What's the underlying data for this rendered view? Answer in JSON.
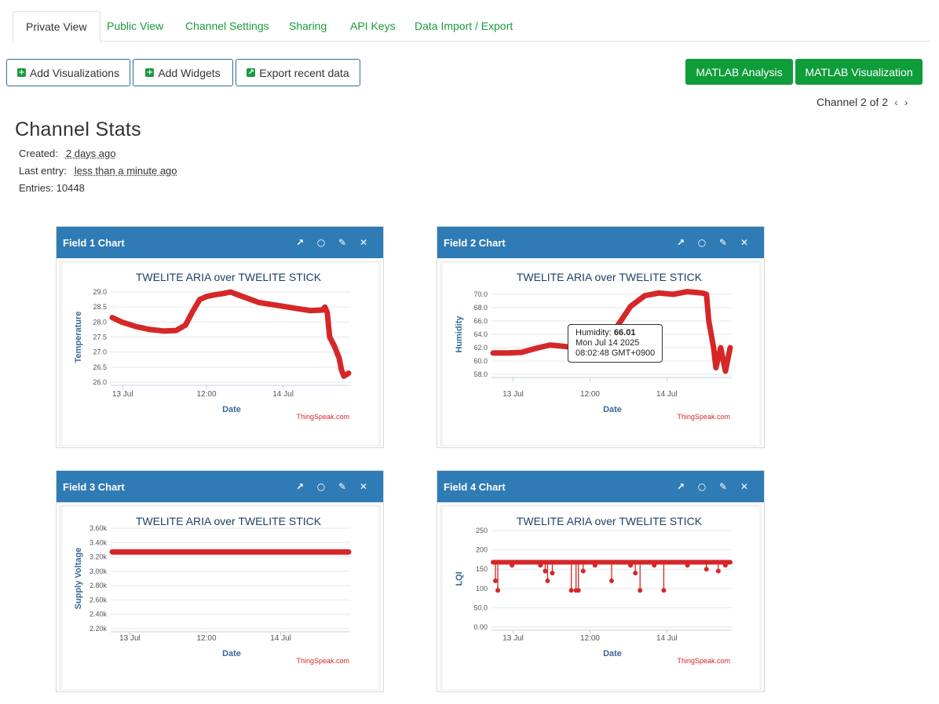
{
  "tabs": [
    {
      "label": "Private View",
      "active": true
    },
    {
      "label": "Public View",
      "active": false
    },
    {
      "label": "Channel Settings",
      "active": false
    },
    {
      "label": "Sharing",
      "active": false
    },
    {
      "label": "API Keys",
      "active": false
    },
    {
      "label": "Data Import / Export",
      "active": false
    }
  ],
  "toolbar": {
    "add_visualizations": "Add Visualizations",
    "add_widgets": "Add Widgets",
    "export_recent": "Export recent data",
    "matlab_analysis": "MATLAB Analysis",
    "matlab_visualization": "MATLAB Visualization"
  },
  "channel_nav": {
    "label": "Channel 2 of 2",
    "prev": "‹",
    "next": "›"
  },
  "stats": {
    "title": "Channel Stats",
    "created_label": "Created:",
    "created_value": "2 days ago",
    "last_entry_label": "Last entry:",
    "last_entry_value": "less than a minute ago",
    "entries_label": "Entries: 10448"
  },
  "colors": {
    "accent": "#2f7bb5",
    "green": "#0f9d3a",
    "series": "#d62728"
  },
  "panels": [
    {
      "title": "Field 1 Chart",
      "chart_data": {
        "type": "line",
        "title": "TWELITE ARIA over TWELITE STICK",
        "xlabel": "Date",
        "ylabel": "Temperature",
        "credit": "ThingSpeak.com",
        "yticks": [
          "29.0",
          "28.5",
          "28.0",
          "27.5",
          "27.0",
          "26.5",
          "26.0"
        ],
        "ylim": [
          26.0,
          29.0
        ],
        "xticks": [
          "13 Jul",
          "12:00",
          "14 Jul"
        ],
        "xtick_t": [
          0.05,
          0.4,
          0.72
        ],
        "series": [
          {
            "t": [
              0.0,
              0.04,
              0.1,
              0.16,
              0.22,
              0.27,
              0.31,
              0.34,
              0.37,
              0.4,
              0.43,
              0.47,
              0.5,
              0.55,
              0.62,
              0.7,
              0.78,
              0.84,
              0.89,
              0.9,
              0.91,
              0.92,
              0.94,
              0.96,
              0.97,
              0.98,
              1.0
            ],
            "values": [
              28.15,
              28.0,
              27.85,
              27.75,
              27.7,
              27.72,
              27.9,
              28.35,
              28.75,
              28.85,
              28.9,
              28.95,
              29.0,
              28.85,
              28.65,
              28.55,
              28.45,
              28.38,
              28.4,
              28.5,
              28.3,
              27.5,
              27.2,
              26.8,
              26.4,
              26.2,
              26.3
            ]
          }
        ]
      }
    },
    {
      "title": "Field 2 Chart",
      "chart_data": {
        "type": "line",
        "title": "TWELITE ARIA over TWELITE STICK",
        "xlabel": "Date",
        "ylabel": "Humidity",
        "credit": "ThingSpeak.com",
        "yticks": [
          "70.0",
          "68.0",
          "66.0",
          "64.0",
          "62.0",
          "60.0",
          "58.0"
        ],
        "ylim": [
          58.0,
          70.0
        ],
        "xticks": [
          "13 Jul",
          "12:00",
          "14 Jul"
        ],
        "xtick_t": [
          0.09,
          0.41,
          0.73
        ],
        "series": [
          {
            "t": [
              0.0,
              0.06,
              0.12,
              0.18,
              0.24,
              0.3,
              0.36,
              0.41,
              0.46,
              0.52,
              0.58,
              0.64,
              0.7,
              0.76,
              0.82,
              0.88,
              0.9,
              0.91,
              0.93,
              0.94,
              0.95,
              0.96,
              0.98,
              1.0
            ],
            "values": [
              61.2,
              61.2,
              61.3,
              61.9,
              62.4,
              62.2,
              61.9,
              61.8,
              62.6,
              65.0,
              68.2,
              69.8,
              70.2,
              70.0,
              70.4,
              70.2,
              70.0,
              66.0,
              62.0,
              59.0,
              60.5,
              62.0,
              58.5,
              62.0
            ]
          }
        ],
        "tooltip": {
          "label": "Humidity: ",
          "value": "66.01",
          "date": "Mon Jul 14 2025",
          "time": "08:02:48 GMT+0900"
        }
      }
    },
    {
      "title": "Field 3 Chart",
      "chart_data": {
        "type": "line",
        "title": "TWELITE ARIA over TWELITE STICK",
        "xlabel": "Date",
        "ylabel": "Supply Voltage",
        "credit": "ThingSpeak.com",
        "yticks": [
          "3.60k",
          "3.40k",
          "3.20k",
          "3.00k",
          "2.80k",
          "2.60k",
          "2.40k",
          "2.20k"
        ],
        "ylim": [
          2200,
          3600
        ],
        "xticks": [
          "13 Jul",
          "12:00",
          "14 Jul"
        ],
        "xtick_t": [
          0.08,
          0.4,
          0.71
        ],
        "series": [
          {
            "t": [
              0.0,
              1.0
            ],
            "values": [
              3270,
              3270
            ]
          }
        ]
      }
    },
    {
      "title": "Field 4 Chart",
      "chart_data": {
        "type": "line",
        "title": "TWELITE ARIA over TWELITE STICK",
        "xlabel": "Date",
        "ylabel": "LQI",
        "credit": "ThingSpeak.com",
        "yticks": [
          "250",
          "200",
          "150",
          "100",
          "50.0",
          "0.00"
        ],
        "ylim": [
          0,
          250
        ],
        "xticks": [
          "13 Jul",
          "12:00",
          "14 Jul"
        ],
        "xtick_t": [
          0.09,
          0.41,
          0.73
        ],
        "baseline": 168,
        "dips": [
          [
            0.01,
            120
          ],
          [
            0.02,
            95
          ],
          [
            0.08,
            160
          ],
          [
            0.2,
            160
          ],
          [
            0.22,
            145
          ],
          [
            0.23,
            120
          ],
          [
            0.25,
            140
          ],
          [
            0.33,
            95
          ],
          [
            0.35,
            95
          ],
          [
            0.36,
            95
          ],
          [
            0.38,
            145
          ],
          [
            0.43,
            160
          ],
          [
            0.5,
            120
          ],
          [
            0.58,
            160
          ],
          [
            0.6,
            140
          ],
          [
            0.62,
            95
          ],
          [
            0.68,
            160
          ],
          [
            0.72,
            95
          ],
          [
            0.82,
            160
          ],
          [
            0.9,
            150
          ],
          [
            0.95,
            145
          ],
          [
            0.98,
            160
          ]
        ]
      }
    }
  ]
}
